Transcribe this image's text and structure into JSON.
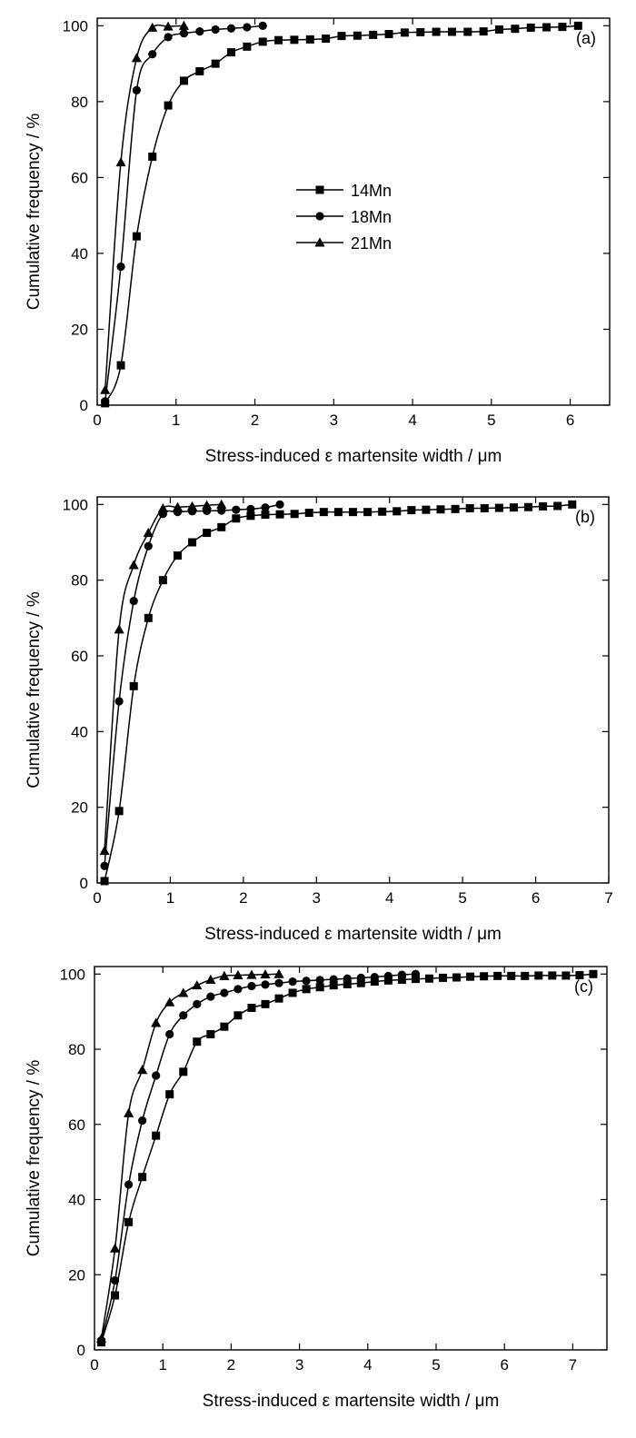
{
  "chart_data": [
    {
      "type": "line",
      "panel_label": "(a)",
      "xlabel": "Stress-induced ε martensite width / μm",
      "ylabel": "Cumulative frequency / %",
      "xlim": [
        0,
        6.5
      ],
      "ylim": [
        0,
        102
      ],
      "xticks": [
        "0",
        "1",
        "2",
        "3",
        "4",
        "5",
        "6"
      ],
      "yticks": [
        "0",
        "20",
        "40",
        "60",
        "80",
        "100"
      ],
      "grid": false,
      "legend_position": "center",
      "legend": [
        "14Mn",
        "18Mn",
        "21Mn"
      ],
      "series": [
        {
          "name": "14Mn",
          "marker": "square",
          "x": [
            0.1,
            0.3,
            0.5,
            0.7,
            0.9,
            1.1,
            1.3,
            1.5,
            1.7,
            1.9,
            2.1,
            2.3,
            2.5,
            2.7,
            2.9,
            3.1,
            3.3,
            3.5,
            3.7,
            3.9,
            4.1,
            4.3,
            4.5,
            4.7,
            4.9,
            5.1,
            5.3,
            5.5,
            5.7,
            5.9,
            6.1
          ],
          "y": [
            0.5,
            10.5,
            44.5,
            65.5,
            79,
            85.5,
            88,
            90,
            93,
            94.5,
            95.8,
            96.2,
            96.3,
            96.4,
            96.6,
            97.3,
            97.4,
            97.6,
            97.8,
            98.2,
            98.3,
            98.4,
            98.4,
            98.4,
            98.5,
            99,
            99.2,
            99.5,
            99.6,
            99.7,
            100
          ]
        },
        {
          "name": "18Mn",
          "marker": "circle",
          "x": [
            0.1,
            0.3,
            0.5,
            0.7,
            0.9,
            1.1,
            1.3,
            1.5,
            1.7,
            1.9,
            2.1
          ],
          "y": [
            1,
            36.5,
            83,
            92.5,
            97,
            98,
            98.5,
            99,
            99.3,
            99.6,
            100
          ]
        },
        {
          "name": "21Mn",
          "marker": "triangle",
          "x": [
            0.1,
            0.3,
            0.5,
            0.7,
            0.9,
            1.1
          ],
          "y": [
            4,
            64,
            91.5,
            99.5,
            99.8,
            100
          ]
        }
      ]
    },
    {
      "type": "line",
      "panel_label": "(b)",
      "xlabel": "Stress-induced ε martensite width / μm",
      "ylabel": "Cumulative frequency / %",
      "xlim": [
        0,
        7
      ],
      "ylim": [
        0,
        102
      ],
      "xticks": [
        "0",
        "1",
        "2",
        "3",
        "4",
        "5",
        "6",
        "7"
      ],
      "yticks": [
        "0",
        "20",
        "40",
        "60",
        "80",
        "100"
      ],
      "grid": false,
      "series": [
        {
          "name": "14Mn",
          "marker": "square",
          "x": [
            0.1,
            0.3,
            0.5,
            0.7,
            0.9,
            1.1,
            1.3,
            1.5,
            1.7,
            1.9,
            2.1,
            2.3,
            2.5,
            2.7,
            2.9,
            3.1,
            3.3,
            3.5,
            3.7,
            3.9,
            4.1,
            4.3,
            4.5,
            4.7,
            4.9,
            5.1,
            5.3,
            5.5,
            5.7,
            5.9,
            6.1,
            6.3,
            6.5
          ],
          "y": [
            0.5,
            19,
            52,
            70,
            80,
            86.5,
            90,
            92.5,
            94,
            96.3,
            97,
            97.3,
            97.4,
            97.5,
            97.8,
            98,
            98,
            98,
            98,
            98.1,
            98.2,
            98.5,
            98.6,
            98.7,
            98.8,
            99,
            99,
            99.1,
            99.2,
            99.3,
            99.5,
            99.6,
            100
          ]
        },
        {
          "name": "18Mn",
          "marker": "circle",
          "x": [
            0.1,
            0.3,
            0.5,
            0.7,
            0.9,
            1.1,
            1.3,
            1.5,
            1.7,
            1.9,
            2.1,
            2.3,
            2.5
          ],
          "y": [
            4.5,
            48,
            74.5,
            89,
            97.5,
            98,
            98.2,
            98.3,
            98.4,
            98.6,
            98.8,
            99.2,
            100
          ]
        },
        {
          "name": "21Mn",
          "marker": "triangle",
          "x": [
            0.1,
            0.3,
            0.5,
            0.7,
            0.9,
            1.1,
            1.3,
            1.5,
            1.7
          ],
          "y": [
            8.5,
            67,
            84,
            92.5,
            99,
            99.3,
            99.5,
            99.8,
            100
          ]
        }
      ]
    },
    {
      "type": "line",
      "panel_label": "(c)",
      "xlabel": "Stress-induced ε martensite width / μm",
      "ylabel": "Cumulative frequency / %",
      "xlim": [
        0,
        7.5
      ],
      "ylim": [
        0,
        102
      ],
      "xticks": [
        "0",
        "1",
        "2",
        "3",
        "4",
        "5",
        "6",
        "7"
      ],
      "yticks": [
        "0",
        "20",
        "40",
        "60",
        "80",
        "100"
      ],
      "grid": false,
      "series": [
        {
          "name": "14Mn",
          "marker": "square",
          "x": [
            0.1,
            0.3,
            0.5,
            0.7,
            0.9,
            1.1,
            1.3,
            1.5,
            1.7,
            1.9,
            2.1,
            2.3,
            2.5,
            2.7,
            2.9,
            3.1,
            3.3,
            3.5,
            3.7,
            3.9,
            4.1,
            4.3,
            4.5,
            4.7,
            4.9,
            5.1,
            5.3,
            5.5,
            5.7,
            5.9,
            6.1,
            6.3,
            6.5,
            6.7,
            6.9,
            7.1,
            7.3
          ],
          "y": [
            2,
            14.5,
            34,
            46,
            57,
            68,
            74,
            82,
            84,
            86,
            89,
            91,
            92,
            93.5,
            95,
            96,
            96.5,
            97,
            97.3,
            97.6,
            98,
            98.3,
            98.5,
            98.7,
            98.8,
            99,
            99.1,
            99.3,
            99.4,
            99.5,
            99.5,
            99.5,
            99.6,
            99.6,
            99.6,
            99.7,
            100
          ]
        },
        {
          "name": "18Mn",
          "marker": "circle",
          "x": [
            0.1,
            0.3,
            0.5,
            0.7,
            0.9,
            1.1,
            1.3,
            1.5,
            1.7,
            1.9,
            2.1,
            2.3,
            2.5,
            2.7,
            2.9,
            3.1,
            3.3,
            3.5,
            3.7,
            3.9,
            4.1,
            4.3,
            4.5,
            4.7
          ],
          "y": [
            2.5,
            18.5,
            44,
            61,
            73,
            84,
            89,
            92,
            94,
            95,
            96,
            96.8,
            97.2,
            97.6,
            98,
            98.2,
            98.4,
            98.6,
            98.8,
            99,
            99.2,
            99.5,
            99.8,
            100
          ]
        },
        {
          "name": "21Mn",
          "marker": "triangle",
          "x": [
            0.1,
            0.3,
            0.5,
            0.7,
            0.9,
            1.1,
            1.3,
            1.5,
            1.7,
            1.9,
            2.1,
            2.3,
            2.5,
            2.7
          ],
          "y": [
            3,
            27,
            63,
            74.5,
            87,
            92.5,
            95,
            97,
            98.5,
            99.5,
            99.7,
            99.8,
            99.9,
            100
          ]
        }
      ]
    }
  ]
}
